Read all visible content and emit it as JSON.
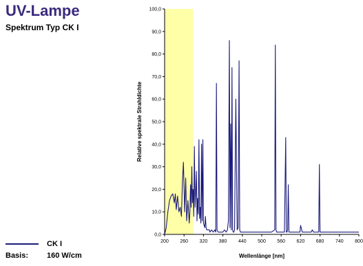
{
  "header": {
    "title": "UV-Lampe",
    "subtitle": "Spektrum Typ CK I"
  },
  "legend": {
    "series_label": "CK I",
    "basis_label": "Basis:",
    "basis_value": "160 W/cm"
  },
  "colors": {
    "series": "#1a1a7a",
    "uv_highlight": "#ffffa8",
    "title": "#3a2a7c"
  },
  "chart_data": {
    "type": "line",
    "title": "",
    "xlabel": "Wellenlänge [nm]",
    "ylabel": "Relative spektrale Strahldichte",
    "xlim": [
      200,
      800
    ],
    "ylim": [
      0,
      100
    ],
    "x_tick_labels": [
      "200",
      "260",
      "320",
      "380",
      "440",
      "500",
      "560",
      "620",
      "680",
      "740",
      "800"
    ],
    "y_tick_labels": [
      "0,0",
      "10,0",
      "20,0",
      "30,0",
      "40,0",
      "50,0",
      "60,0",
      "70,0",
      "80,0",
      "90,0",
      "100,0"
    ],
    "highlight_band": [
      200,
      288
    ],
    "grid": false,
    "series": [
      {
        "name": "CK I",
        "x": [
          200,
          205,
          210,
          215,
          220,
          225,
          230,
          233,
          236,
          240,
          244,
          248,
          252,
          255,
          258,
          262,
          265,
          268,
          272,
          276,
          278,
          280,
          282,
          284,
          286,
          288,
          290,
          292,
          294,
          296,
          298,
          300,
          302,
          304,
          306,
          308,
          310,
          312,
          314,
          316,
          318,
          320,
          322,
          324,
          326,
          328,
          330,
          332,
          334,
          336,
          338,
          340,
          345,
          350,
          355,
          358,
          360,
          362,
          365,
          370,
          375,
          380,
          385,
          390,
          394,
          397,
          400,
          402,
          404,
          406,
          408,
          410,
          412,
          414,
          416,
          420,
          424,
          427,
          430,
          432,
          434,
          436,
          438,
          440,
          442,
          445,
          450,
          460,
          470,
          480,
          490,
          500,
          510,
          520,
          530,
          540,
          542,
          544,
          546,
          548,
          550,
          555,
          560,
          565,
          570,
          574,
          576,
          578,
          580,
          582,
          584,
          586,
          588,
          590,
          592,
          594,
          600,
          610,
          615,
          618,
          620,
          625,
          640,
          650,
          653,
          656,
          660,
          670,
          673,
          676,
          678,
          680,
          683,
          686,
          700,
          720,
          740,
          760,
          780,
          800
        ],
        "y": [
          0,
          3,
          10,
          15,
          17,
          18,
          14,
          18,
          11,
          17,
          10,
          12,
          8,
          24,
          32,
          10,
          25,
          6,
          15,
          5,
          10,
          22,
          12,
          30,
          14,
          20,
          8,
          39,
          12,
          18,
          28,
          6,
          16,
          9,
          42,
          7,
          12,
          5,
          40,
          6,
          42,
          5,
          4,
          3,
          8,
          3,
          2,
          2,
          2,
          2,
          2,
          1,
          2,
          1,
          2,
          1,
          67,
          2,
          1,
          1,
          1,
          1,
          2,
          1,
          2,
          6,
          86,
          3,
          49,
          2,
          74,
          2,
          1,
          1,
          2,
          60,
          2,
          3,
          77,
          2,
          1,
          1,
          1,
          1,
          1,
          1,
          1,
          1,
          1,
          1,
          1,
          1,
          1,
          1,
          1,
          2,
          84,
          2,
          1,
          1,
          1,
          1,
          1,
          1,
          1,
          43,
          1,
          1,
          2,
          22,
          1,
          1,
          1,
          1,
          1,
          1,
          1,
          1,
          1,
          1,
          4,
          1,
          1,
          1,
          1,
          2,
          1,
          1,
          1,
          1,
          31,
          1,
          1,
          1,
          1,
          1,
          1,
          1,
          1,
          1
        ]
      }
    ]
  }
}
